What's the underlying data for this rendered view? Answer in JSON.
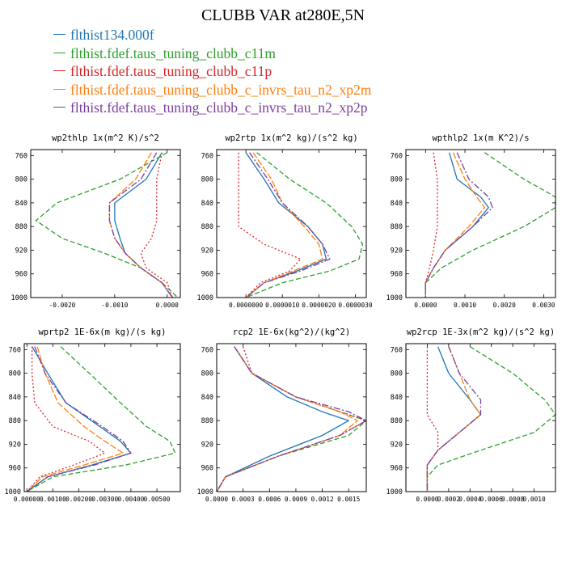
{
  "title": "CLUBB VAR at280E,5N",
  "legend": [
    {
      "label": "flthist134.000f",
      "color": "#1f77b4",
      "dash": "solid"
    },
    {
      "label": "flthist.fdef.taus_tuning_clubb_c11m",
      "color": "#2ca02c",
      "dash": "6,3"
    },
    {
      "label": "flthist.fdef.taus_tuning_clubb_c11p",
      "color": "#d62728",
      "dash": "2,2.5"
    },
    {
      "label": "flthist.fdef.taus_tuning_clubb_c_invrs_tau_n2_xp2m",
      "color": "#ff7f0e",
      "dash": "8,2.5"
    },
    {
      "label": "flthist.fdef.taus_tuning_clubb_c_invrs_tau_n2_xp2p",
      "color": "#7b3fa0",
      "dash": "8,2.5,2,2.5"
    }
  ],
  "chart_data": [
    {
      "type": "line",
      "title": "wp2thlp  1x(m^2 K)/s^2",
      "xlim": [
        -0.0026,
        0.00025
      ],
      "ylim": [
        1000,
        750
      ],
      "yticks": [
        760,
        800,
        840,
        880,
        920,
        960,
        1000
      ],
      "xticks": [
        -0.002,
        -0.001,
        0.0
      ],
      "xtick_labels": [
        "-0.0020",
        "-0.0010",
        "0.0000"
      ],
      "y": [
        755,
        800,
        840,
        870,
        900,
        925,
        950,
        975,
        1000
      ],
      "series": [
        {
          "values": [
            -0.0001,
            -0.0004,
            -0.001,
            -0.001,
            -0.0009,
            -0.0008,
            -0.0005,
            -0.0001,
            0.0001
          ]
        },
        {
          "values": [
            0.0,
            -0.0009,
            -0.0021,
            -0.0025,
            -0.002,
            -0.0012,
            -0.0005,
            -0.0001,
            0.0002
          ]
        },
        {
          "values": [
            -0.0001,
            -0.0002,
            -0.0002,
            -0.0002,
            -0.0003,
            -0.0005,
            -0.0004,
            0.0,
            0.0001
          ]
        },
        {
          "values": [
            -0.0003,
            -0.0006,
            -0.0011,
            -0.0011,
            -0.001,
            -0.0008,
            -0.0005,
            -0.0001,
            0.0001
          ]
        },
        {
          "values": [
            -0.0002,
            -0.0005,
            -0.0011,
            -0.0011,
            -0.001,
            -0.0008,
            -0.0005,
            -0.0001,
            0.0001
          ]
        }
      ]
    },
    {
      "type": "line",
      "title": "wp2rtp  1x(m^2 kg)/(s^2 kg)",
      "xlim": [
        -8e-07,
        3.3e-06
      ],
      "ylim": [
        1000,
        750
      ],
      "yticks": [
        760,
        800,
        840,
        880,
        920,
        960,
        1000
      ],
      "xticks": [
        0.0,
        1e-06,
        2e-06,
        3e-06
      ],
      "xtick_labels": [
        "0.0000000",
        "0.0000010",
        "0.0000020",
        "0.0000030"
      ],
      "y": [
        755,
        800,
        840,
        880,
        910,
        935,
        955,
        975,
        1000
      ],
      "series": [
        {
          "values": [
            0.0,
            5e-07,
            9e-07,
            1.7e-06,
            2.1e-06,
            2.2e-06,
            1.4e-06,
            5e-07,
            0.0
          ]
        },
        {
          "values": [
            3e-07,
            1.2e-06,
            2.2e-06,
            2.9e-06,
            3.2e-06,
            3.1e-06,
            2.3e-06,
            1e-06,
            0.0
          ]
        },
        {
          "values": [
            -2e-07,
            -2e-07,
            -2e-07,
            -2e-07,
            5e-07,
            1.5e-06,
            1.2e-06,
            4e-07,
            0.0
          ]
        },
        {
          "values": [
            2e-07,
            7e-07,
            1e-06,
            1.6e-06,
            2e-06,
            2.1e-06,
            1.3e-06,
            5e-07,
            0.0
          ]
        },
        {
          "values": [
            1e-07,
            6e-07,
            1e-06,
            1.7e-06,
            2.1e-06,
            2.3e-06,
            1.5e-06,
            5e-07,
            0.0
          ]
        }
      ]
    },
    {
      "type": "line",
      "title": "wpthlp2  1x(m K^2)/s",
      "xlim": [
        -0.0005,
        0.0033
      ],
      "ylim": [
        1000,
        750
      ],
      "yticks": [
        760,
        800,
        840,
        880,
        920,
        960,
        1000
      ],
      "xticks": [
        0.0,
        0.001,
        0.002,
        0.003
      ],
      "xtick_labels": [
        "0.0000",
        "0.0010",
        "0.0020",
        "0.0030"
      ],
      "y": [
        755,
        800,
        830,
        848,
        880,
        920,
        950,
        975,
        1000
      ],
      "series": [
        {
          "values": [
            0.0006,
            0.0008,
            0.0014,
            0.0016,
            0.0012,
            0.0005,
            0.0002,
            0.0,
            0.0
          ]
        },
        {
          "values": [
            0.0015,
            0.0025,
            0.0033,
            0.0033,
            0.0025,
            0.0012,
            0.0004,
            0.0,
            0.0
          ]
        },
        {
          "values": [
            0.0002,
            0.0003,
            0.0003,
            0.0003,
            0.0003,
            0.0002,
            0.0001,
            0.0,
            0.0
          ]
        },
        {
          "values": [
            0.0007,
            0.001,
            0.0013,
            0.0015,
            0.0011,
            0.0005,
            0.0002,
            0.0,
            0.0
          ]
        },
        {
          "values": [
            0.0008,
            0.0011,
            0.0016,
            0.0017,
            0.0012,
            0.0005,
            0.0002,
            0.0,
            0.0
          ]
        }
      ]
    },
    {
      "type": "line",
      "title": "wprtp2  1E-6x(m kg)/(s kg)",
      "xlim": [
        -0.0001,
        0.0059
      ],
      "ylim": [
        1000,
        750
      ],
      "yticks": [
        760,
        800,
        840,
        880,
        920,
        960,
        1000
      ],
      "xticks": [
        0.0,
        0.001,
        0.002,
        0.003,
        0.004,
        0.005
      ],
      "xtick_labels": [
        "0.00000",
        "0.00100",
        "0.00200",
        "0.00300",
        "0.00400",
        "0.00500"
      ],
      "y": [
        755,
        800,
        850,
        890,
        915,
        935,
        955,
        975,
        1000
      ],
      "series": [
        {
          "values": [
            0.0002,
            0.0008,
            0.0015,
            0.0028,
            0.0036,
            0.004,
            0.0025,
            0.0008,
            0.0
          ]
        },
        {
          "values": [
            0.0013,
            0.0024,
            0.0036,
            0.0046,
            0.0055,
            0.0057,
            0.0038,
            0.001,
            0.0
          ]
        },
        {
          "values": [
            0.0002,
            0.0002,
            0.0003,
            0.001,
            0.0024,
            0.003,
            0.0018,
            0.0005,
            0.0
          ]
        },
        {
          "values": [
            0.0004,
            0.0007,
            0.0012,
            0.0022,
            0.003,
            0.0037,
            0.0022,
            0.0006,
            0.0
          ]
        },
        {
          "values": [
            0.0003,
            0.0007,
            0.0015,
            0.0029,
            0.0037,
            0.004,
            0.0026,
            0.0008,
            0.0
          ]
        }
      ]
    },
    {
      "type": "line",
      "title": "rcp2  1E-6x(kg^2)/(kg^2)",
      "xlim": [
        0.0,
        0.0017
      ],
      "ylim": [
        1000,
        750
      ],
      "yticks": [
        760,
        800,
        840,
        880,
        920,
        960,
        1000
      ],
      "xticks": [
        0.0,
        0.0003,
        0.0006,
        0.0009,
        0.0012,
        0.0015
      ],
      "xtick_labels": [
        "0.0000",
        "0.0003",
        "0.0006",
        "0.0009",
        "0.0012",
        "0.0015"
      ],
      "y": [
        755,
        800,
        840,
        865,
        880,
        905,
        940,
        975,
        1000
      ],
      "series": [
        {
          "values": [
            0.0002,
            0.0004,
            0.0008,
            0.0012,
            0.0015,
            0.0012,
            0.0006,
            0.0001,
            0.0
          ]
        },
        {
          "values": [
            0.0002,
            0.0004,
            0.0009,
            0.0014,
            0.0017,
            0.0015,
            0.0007,
            0.0001,
            0.0
          ]
        },
        {
          "values": [
            0.0003,
            0.0004,
            0.0009,
            0.0014,
            0.0017,
            0.0014,
            0.0007,
            0.0001,
            0.0
          ]
        },
        {
          "values": [
            0.0002,
            0.0004,
            0.0009,
            0.0014,
            0.0016,
            0.0014,
            0.0007,
            0.0001,
            0.0
          ]
        },
        {
          "values": [
            0.0002,
            0.0004,
            0.0009,
            0.0015,
            0.0017,
            0.0014,
            0.0007,
            0.0001,
            0.0
          ]
        }
      ]
    },
    {
      "type": "line",
      "title": "wp2rcp  1E-3x(m^2 kg)/(s^2 kg)",
      "xlim": [
        -0.0002,
        0.0012
      ],
      "ylim": [
        1000,
        750
      ],
      "yticks": [
        760,
        800,
        840,
        880,
        920,
        960,
        1000
      ],
      "xticks": [
        0.0,
        0.0002,
        0.0004,
        0.0006,
        0.0008,
        0.001
      ],
      "xtick_labels": [
        "0.0000",
        "0.0002",
        "0.0004",
        "0.0006",
        "0.0008",
        "0.0010"
      ],
      "y": [
        755,
        800,
        845,
        870,
        900,
        930,
        955,
        975,
        1000
      ],
      "series": [
        {
          "values": [
            0.0001,
            0.0002,
            0.0004,
            0.0005,
            0.0003,
            0.0001,
            0.0,
            0.0,
            0.0
          ]
        },
        {
          "values": [
            0.0004,
            0.0008,
            0.0011,
            0.0012,
            0.001,
            0.0005,
            0.0001,
            0.0,
            0.0
          ]
        },
        {
          "values": [
            0.0,
            0.0,
            0.0,
            0.0,
            0.0001,
            0.0001,
            0.0,
            0.0,
            0.0
          ]
        },
        {
          "values": [
            0.0002,
            0.0003,
            0.0004,
            0.0005,
            0.0003,
            0.0001,
            0.0,
            0.0,
            0.0
          ]
        },
        {
          "values": [
            0.0002,
            0.0003,
            0.0005,
            0.0005,
            0.0003,
            0.0001,
            0.0,
            0.0,
            0.0
          ]
        }
      ]
    }
  ]
}
